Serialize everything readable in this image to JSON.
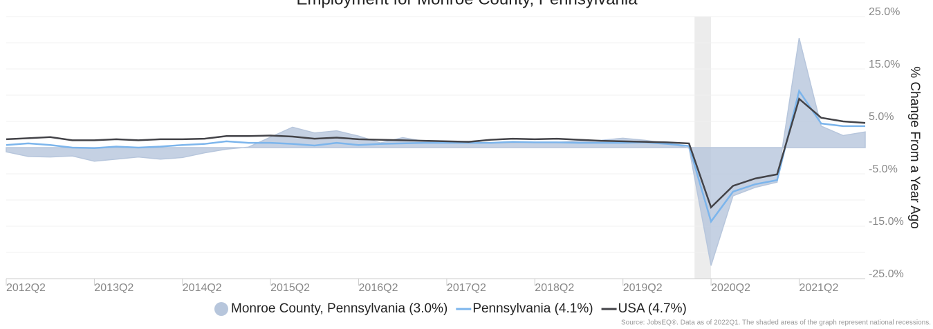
{
  "chart_data": {
    "type": "line",
    "title": "Employment for Monroe County, Pennsylvania",
    "y_axis_label": "% Change From a Year Ago",
    "source": "Source: JobsEQ®. Data as of 2022Q1. The shaded areas of the graph represent national recessions.",
    "categories": [
      "2012Q2",
      null,
      null,
      null,
      "2013Q2",
      null,
      null,
      null,
      "2014Q2",
      null,
      null,
      null,
      "2015Q2",
      null,
      null,
      null,
      "2016Q2",
      null,
      null,
      null,
      "2017Q2",
      null,
      null,
      null,
      "2018Q2",
      null,
      null,
      null,
      "2019Q2",
      null,
      null,
      null,
      "2020Q2",
      null,
      null,
      null,
      "2021Q2",
      null,
      null,
      null
    ],
    "series": [
      {
        "name": "Monroe County, Pennsylvania (3.0%)",
        "color": "#b7c6dc",
        "style": "area",
        "values": [
          -0.8,
          -1.7,
          -1.8,
          -1.6,
          -2.6,
          -2.2,
          -1.8,
          -2.2,
          -1.9,
          -1.0,
          -0.3,
          0.1,
          2.0,
          3.9,
          2.8,
          3.2,
          2.2,
          0.9,
          1.9,
          1.2,
          1.0,
          1.2,
          0.8,
          0.9,
          1.0,
          1.0,
          1.3,
          1.4,
          1.8,
          1.4,
          0.8,
          -0.1,
          -22.5,
          -9.2,
          -7.6,
          -6.6,
          20.9,
          4.1,
          2.3,
          3.0
        ]
      },
      {
        "name": "Pennsylvania (4.1%)",
        "color": "#7cb5ec",
        "style": "line",
        "values": [
          0.5,
          0.8,
          0.5,
          0.0,
          -0.1,
          0.2,
          0.0,
          0.2,
          0.5,
          0.7,
          1.2,
          0.9,
          0.9,
          0.7,
          0.4,
          0.9,
          0.5,
          0.7,
          0.8,
          0.9,
          0.9,
          0.9,
          0.9,
          1.1,
          1.0,
          1.0,
          0.9,
          0.9,
          0.9,
          1.0,
          0.7,
          0.3,
          -14.1,
          -8.4,
          -7.0,
          -6.2,
          10.8,
          4.6,
          4.1,
          4.1
        ]
      },
      {
        "name": "USA (4.7%)",
        "color": "#434348",
        "style": "line",
        "values": [
          1.6,
          1.8,
          2.0,
          1.4,
          1.4,
          1.6,
          1.4,
          1.6,
          1.6,
          1.7,
          2.2,
          2.2,
          2.3,
          2.1,
          1.7,
          1.9,
          1.6,
          1.5,
          1.4,
          1.3,
          1.2,
          1.1,
          1.5,
          1.7,
          1.6,
          1.7,
          1.5,
          1.3,
          1.2,
          1.1,
          1.0,
          0.8,
          -11.4,
          -7.3,
          -5.9,
          -5.1,
          9.3,
          5.7,
          5.0,
          4.7
        ]
      }
    ],
    "recession": [
      "2020Q1",
      "2020Q2"
    ],
    "ylim": [
      -25,
      25
    ],
    "yticks": [
      {
        "value": 25,
        "label": "25.0%"
      },
      {
        "value": 15,
        "label": "15.0%"
      },
      {
        "value": 5,
        "label": "5.0%"
      },
      {
        "value": -5,
        "label": "-5.0%"
      },
      {
        "value": -15,
        "label": "-15.0%"
      },
      {
        "value": -25,
        "label": "-25.0%"
      }
    ],
    "minor_grid": [
      20,
      10,
      0,
      -10,
      -20
    ],
    "grid": true,
    "legend": "bottom"
  }
}
